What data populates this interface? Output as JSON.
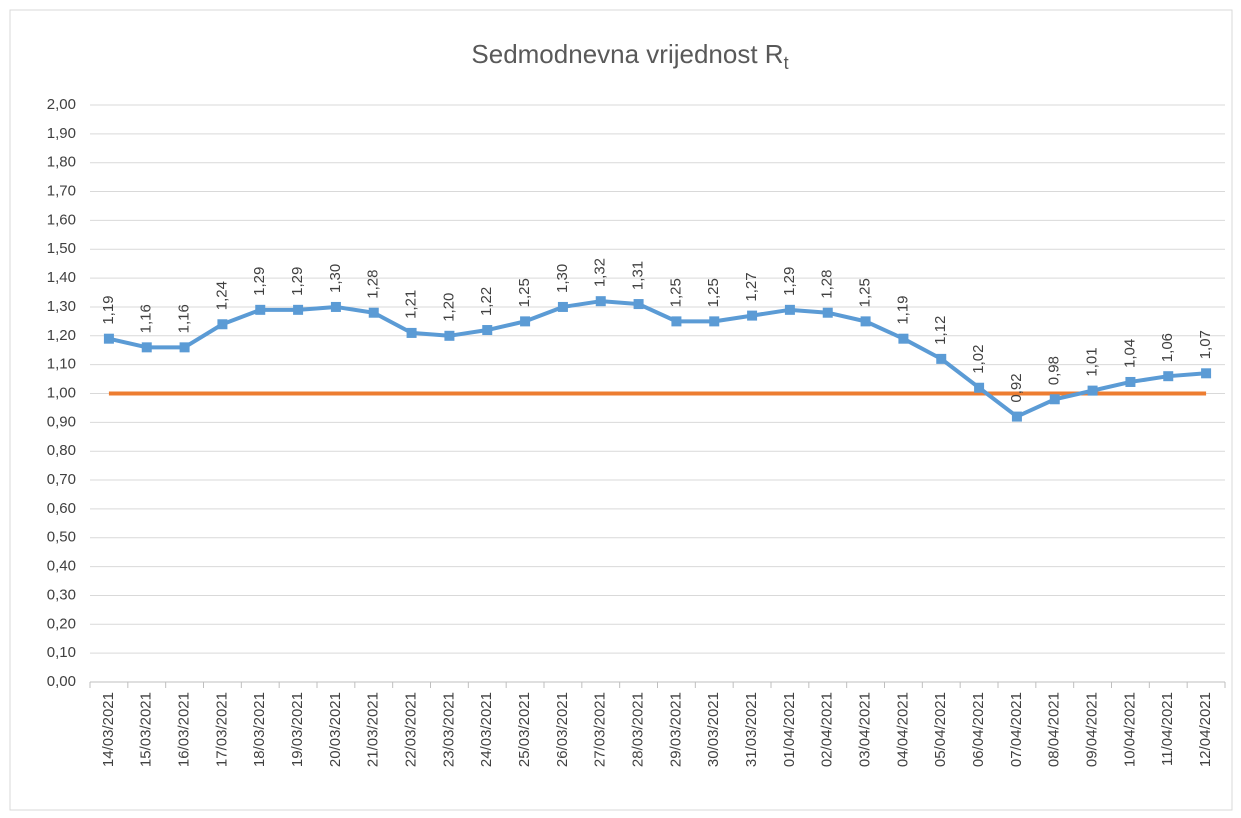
{
  "chart_data": {
    "type": "line",
    "title": "Sedmodnevna vrijednost R",
    "title_subscript": "t",
    "categories": [
      "14/03/2021",
      "15/03/2021",
      "16/03/2021",
      "17/03/2021",
      "18/03/2021",
      "19/03/2021",
      "20/03/2021",
      "21/03/2021",
      "22/03/2021",
      "23/03/2021",
      "24/03/2021",
      "25/03/2021",
      "26/03/2021",
      "27/03/2021",
      "28/03/2021",
      "29/03/2021",
      "30/03/2021",
      "31/03/2021",
      "01/04/2021",
      "02/04/2021",
      "03/04/2021",
      "04/04/2021",
      "05/04/2021",
      "06/04/2021",
      "07/04/2021",
      "08/04/2021",
      "09/04/2021",
      "10/04/2021",
      "11/04/2021",
      "12/04/2021"
    ],
    "series": [
      {
        "color": "#5b9bd5",
        "marker": "square",
        "values": [
          1.19,
          1.16,
          1.16,
          1.24,
          1.29,
          1.29,
          1.3,
          1.28,
          1.21,
          1.2,
          1.22,
          1.25,
          1.3,
          1.32,
          1.31,
          1.25,
          1.25,
          1.27,
          1.29,
          1.28,
          1.25,
          1.19,
          1.12,
          1.02,
          0.92,
          0.98,
          1.01,
          1.04,
          1.06,
          1.07
        ],
        "value_labels": [
          "1,19",
          "1,16",
          "1,16",
          "1,24",
          "1,29",
          "1,29",
          "1,30",
          "1,28",
          "1,21",
          "1,20",
          "1,22",
          "1,25",
          "1,30",
          "1,32",
          "1,31",
          "1,25",
          "1,25",
          "1,27",
          "1,29",
          "1,28",
          "1,25",
          "1,19",
          "1,12",
          "1,02",
          "0,92",
          "0,98",
          "1,01",
          "1,04",
          "1,06",
          "1,07"
        ]
      },
      {
        "color": "#ed7d31",
        "values": [
          1,
          1,
          1,
          1,
          1,
          1,
          1,
          1,
          1,
          1,
          1,
          1,
          1,
          1,
          1,
          1,
          1,
          1,
          1,
          1,
          1,
          1,
          1,
          1,
          1,
          1,
          1,
          1,
          1,
          1
        ]
      }
    ],
    "ylim": [
      0,
      2
    ],
    "yticks": [
      {
        "value": 0,
        "label": "0,00"
      },
      {
        "value": 0.1,
        "label": "0,10"
      },
      {
        "value": 0.2,
        "label": "0,20"
      },
      {
        "value": 0.3,
        "label": "0,30"
      },
      {
        "value": 0.4,
        "label": "0,40"
      },
      {
        "value": 0.5,
        "label": "0,50"
      },
      {
        "value": 0.6,
        "label": "0,60"
      },
      {
        "value": 0.7,
        "label": "0,70"
      },
      {
        "value": 0.8,
        "label": "0,80"
      },
      {
        "value": 0.9,
        "label": "0,90"
      },
      {
        "value": 1,
        "label": "1,00"
      },
      {
        "value": 1.1,
        "label": "1,10"
      },
      {
        "value": 1.2,
        "label": "1,20"
      },
      {
        "value": 1.3,
        "label": "1,30"
      },
      {
        "value": 1.4,
        "label": "1,40"
      },
      {
        "value": 1.5,
        "label": "1,50"
      },
      {
        "value": 1.6,
        "label": "1,60"
      },
      {
        "value": 1.7,
        "label": "1,70"
      },
      {
        "value": 1.8,
        "label": "1,80"
      },
      {
        "value": 1.9,
        "label": "1,90"
      },
      {
        "value": 2,
        "label": "2,00"
      }
    ],
    "grid": true
  }
}
